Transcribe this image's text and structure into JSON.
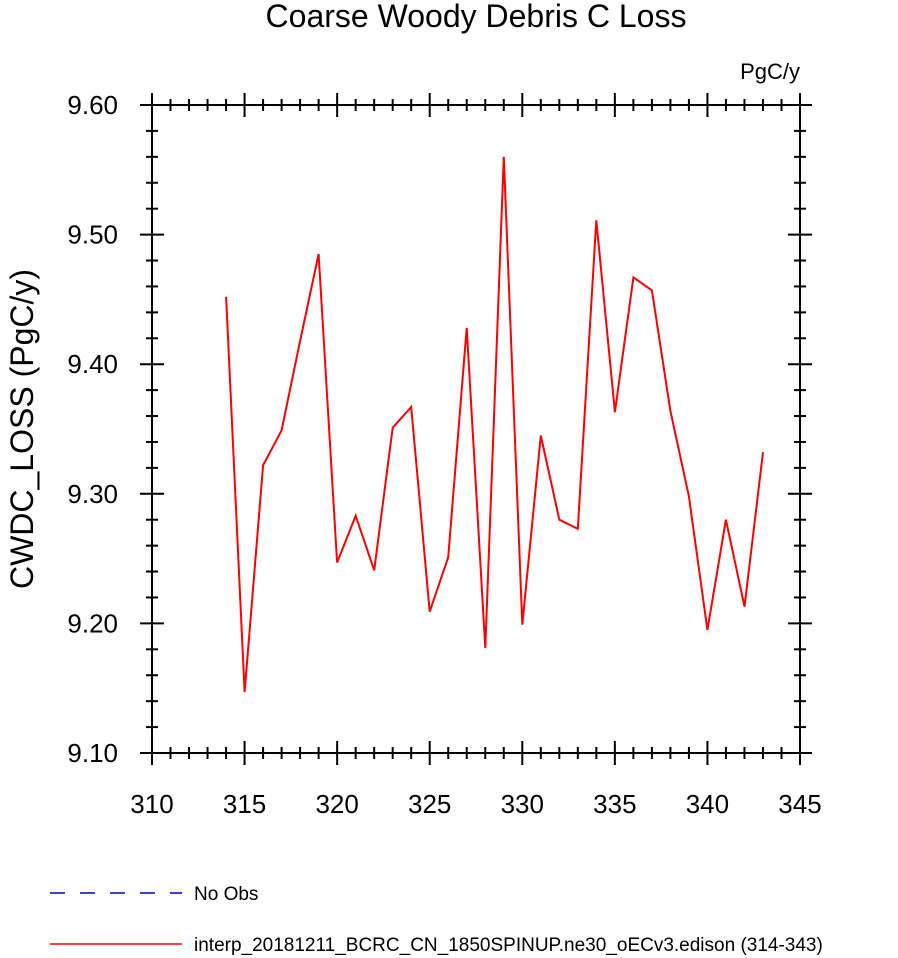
{
  "chart_data": {
    "type": "line",
    "title": "Coarse Woody Debris C Loss",
    "units_label": "PgC/y",
    "ylabel": "CWDC_LOSS  (PgC/y)",
    "xlabel": "",
    "xlim": [
      310,
      345
    ],
    "ylim": [
      9.1,
      9.6
    ],
    "x_ticks": [
      310,
      315,
      320,
      325,
      330,
      335,
      340,
      345
    ],
    "x_tick_labels": [
      "310",
      "315",
      "320",
      "325",
      "330",
      "335",
      "340",
      "345"
    ],
    "y_ticks": [
      9.1,
      9.2,
      9.3,
      9.4,
      9.5,
      9.6
    ],
    "y_tick_labels": [
      "9.10",
      "9.20",
      "9.30",
      "9.40",
      "9.50",
      "9.60"
    ],
    "grid": false,
    "legend_position": "bottom-left",
    "series": [
      {
        "name": "interp_20181211_BCRC_CN_1850SPINUP.ne30_oECv3.edison (314-343)",
        "color": "#ff0000",
        "dash": "solid",
        "x": [
          314,
          315,
          316,
          317,
          318,
          319,
          320,
          321,
          322,
          323,
          324,
          325,
          326,
          327,
          328,
          329,
          330,
          331,
          332,
          333,
          334,
          335,
          336,
          337,
          338,
          339,
          340,
          341,
          342,
          343
        ],
        "y": [
          9.452,
          9.147,
          9.322,
          9.349,
          9.418,
          9.485,
          9.247,
          9.283,
          9.241,
          9.351,
          9.367,
          9.209,
          9.251,
          9.428,
          9.181,
          9.56,
          9.199,
          9.345,
          9.28,
          9.273,
          9.511,
          9.363,
          9.467,
          9.457,
          9.364,
          9.298,
          9.195,
          9.28,
          9.213,
          9.332
        ]
      }
    ],
    "legend": [
      {
        "label": "No Obs",
        "color": "#0000cc",
        "dash": "dashed"
      },
      {
        "label": "interp_20181211_BCRC_CN_1850SPINUP.ne30_oECv3.edison (314-343)",
        "color": "#ff0000",
        "dash": "solid"
      }
    ]
  }
}
